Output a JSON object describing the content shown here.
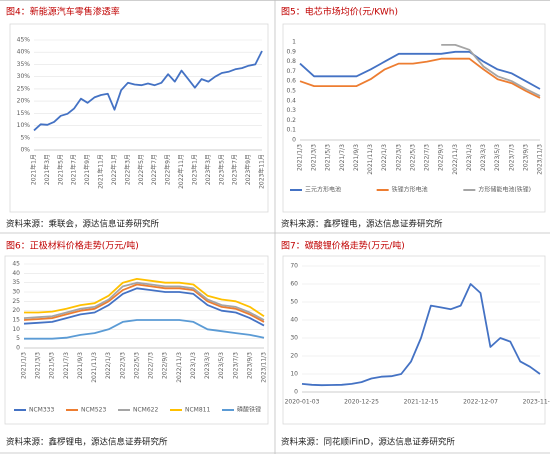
{
  "chart_data": [
    {
      "type": "line",
      "title": "图4：新能源汽车零售渗透率",
      "source": "资料来源：乘联会，源达信息证券研究所",
      "categories": [
        "2021年1月",
        null,
        "2021年3月",
        null,
        "2021年5月",
        null,
        "2021年7月",
        null,
        "2021年9月",
        null,
        "2021年11月",
        null,
        "2022年1月",
        null,
        "2022年3月",
        null,
        "2022年5月",
        null,
        "2022年7月",
        null,
        "2022年9月",
        null,
        "2022年11月",
        null,
        "2023年1月",
        null,
        "2023年3月",
        null,
        "2023年5月",
        null,
        "2023年7月",
        null,
        "2023年9月",
        null,
        "2023年11月"
      ],
      "series": [
        {
          "name": null,
          "color": "#4472c4",
          "values": [
            8,
            10.5,
            10.3,
            11.5,
            14,
            14.8,
            17,
            21,
            19.3,
            21.5,
            22.5,
            23,
            16.5,
            24.5,
            27.5,
            26.8,
            26.5,
            27.2,
            26.5,
            27.5,
            31,
            28,
            32.5,
            29,
            25.5,
            29,
            28,
            30,
            31.5,
            32,
            33,
            33.5,
            34.5,
            35,
            40.5
          ]
        }
      ],
      "ylim": [
        0,
        45
      ],
      "yticks": [
        {
          "value": 0,
          "label": "0%"
        },
        {
          "value": 5,
          "label": "5%"
        },
        {
          "value": 10,
          "label": "10%"
        },
        {
          "value": 15,
          "label": "15%"
        },
        {
          "value": 20,
          "label": "20%"
        },
        {
          "value": 25,
          "label": "25%"
        },
        {
          "value": 30,
          "label": "30%"
        },
        {
          "value": 35,
          "label": "35%"
        },
        {
          "value": 40,
          "label": "40%"
        },
        {
          "value": 45,
          "label": "45%"
        }
      ],
      "grid": true
    },
    {
      "type": "line",
      "title": "图5：电芯市场均价(元/KWh)",
      "source": "资料来源：鑫椤锂电，源达信息证券研究所",
      "categories": [
        "2021/1/3",
        "2021/3/3",
        "2021/5/3",
        "2021/7/3",
        "2021/9/3",
        "2021/11/3",
        "2022/1/3",
        "2022/3/3",
        "2022/5/3",
        "2022/7/3",
        "2022/9/3",
        "2022/11/3",
        "2023/1/3",
        "2023/3/3",
        "2023/5/3",
        "2023/7/3",
        "2023/9/3",
        "2023/11/3"
      ],
      "series": [
        {
          "name": "三元方形电池",
          "color": "#4472c4",
          "values": [
            0.78,
            0.65,
            0.65,
            0.65,
            0.65,
            0.72,
            0.8,
            0.88,
            0.88,
            0.88,
            0.88,
            0.9,
            0.9,
            0.8,
            0.72,
            0.68,
            0.6,
            0.52
          ]
        },
        {
          "name": "铁锂方形电池",
          "color": "#ed7d31",
          "values": [
            0.6,
            0.55,
            0.55,
            0.55,
            0.55,
            0.62,
            0.72,
            0.78,
            0.78,
            0.8,
            0.83,
            0.83,
            0.83,
            0.72,
            0.62,
            0.58,
            0.5,
            0.43
          ]
        },
        {
          "name": "方形储能电池(铁锂)",
          "color": "#a5a5a5",
          "values": [
            null,
            null,
            null,
            null,
            null,
            null,
            null,
            null,
            null,
            null,
            0.97,
            0.97,
            0.92,
            0.75,
            0.65,
            0.6,
            0.52,
            0.45
          ]
        }
      ],
      "ylim": [
        0,
        1
      ],
      "yticks": [
        0,
        0.1,
        0.2,
        0.3,
        0.4,
        0.5,
        0.6,
        0.7,
        0.8,
        0.9,
        1
      ],
      "grid": false
    },
    {
      "type": "line",
      "title": "图6：正极材料价格走势(万元/吨)",
      "source": "资料来源：鑫椤锂电，源达信息证券研究所",
      "categories": [
        "2021/1/3",
        "2021/3/3",
        "2021/5/3",
        "2021/7/3",
        "2021/9/3",
        "2021/11/3",
        "2022/1/3",
        "2022/3/3",
        "2022/5/3",
        "2022/7/3",
        "2022/9/3",
        "2022/11/3",
        "2023/1/3",
        "2023/3/3",
        "2023/5/3",
        "2023/7/3",
        "2023/9/3",
        "2023/11/3"
      ],
      "series": [
        {
          "name": "NCM333",
          "color": "#4472c4",
          "values": [
            13,
            13.5,
            14,
            16,
            18,
            19,
            23,
            29,
            32,
            31,
            30,
            30,
            29,
            23,
            20,
            19,
            16,
            12
          ]
        },
        {
          "name": "NCM523",
          "color": "#ed7d31",
          "values": [
            15,
            15.5,
            16,
            18,
            20,
            21,
            25,
            31,
            34,
            33,
            32,
            32,
            31,
            25,
            22,
            21,
            18,
            14
          ]
        },
        {
          "name": "NCM622",
          "color": "#a5a5a5",
          "values": [
            16,
            16.5,
            17,
            19,
            21,
            22,
            26,
            33,
            35,
            34,
            33,
            33,
            32,
            26,
            23,
            22,
            19,
            15
          ]
        },
        {
          "name": "NCM811",
          "color": "#ffc000",
          "values": [
            19,
            19,
            19.5,
            21,
            23,
            24,
            28,
            35,
            37,
            36,
            35,
            35,
            34,
            28,
            26,
            25,
            22,
            17
          ]
        },
        {
          "name": "磷酸铁锂",
          "color": "#5b9bd5",
          "values": [
            5,
            5,
            5,
            5.5,
            7,
            8,
            10,
            14,
            15,
            15,
            15,
            15,
            14,
            10,
            9,
            8,
            7,
            5.5
          ]
        }
      ],
      "ylim": [
        0,
        45
      ],
      "yticks": [
        0,
        5,
        10,
        15,
        20,
        25,
        30,
        35,
        40,
        45
      ],
      "grid": true
    },
    {
      "type": "line",
      "title": "图7：碳酸锂价格走势(万元/吨)",
      "source": "资料来源：同花顺iFinD，源达信息证券研究所",
      "categories": [
        "2020-01-03",
        null,
        null,
        null,
        null,
        null,
        "2020-12-25",
        null,
        null,
        null,
        null,
        null,
        "2021-12-15",
        null,
        null,
        null,
        null,
        null,
        "2022-12-07",
        null,
        null,
        null,
        null,
        null,
        "2023-11-29"
      ],
      "series": [
        {
          "name": null,
          "color": "#4472c4",
          "values": [
            4.5,
            4,
            3.8,
            3.9,
            4,
            4.5,
            5.5,
            7.5,
            8.5,
            8.8,
            10,
            17,
            30,
            48,
            47,
            46,
            48,
            60,
            55,
            25,
            30,
            28,
            17,
            14,
            10
          ]
        }
      ],
      "ylim": [
        0,
        70
      ],
      "yticks": [
        0,
        10,
        20,
        30,
        40,
        50,
        60,
        70
      ],
      "grid": true
    }
  ]
}
